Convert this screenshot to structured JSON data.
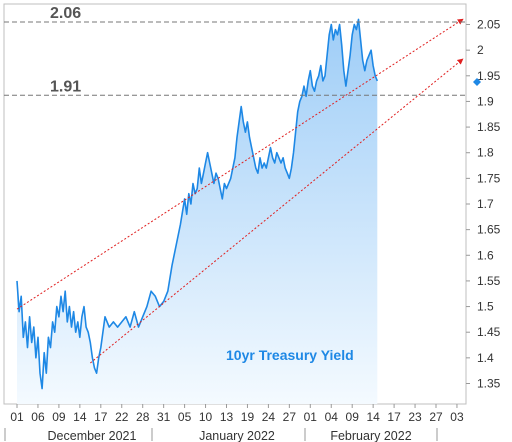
{
  "chart_data": {
    "type": "area",
    "title": "",
    "xlabel": "",
    "ylabel": "",
    "annotation": "10yr Treasury Yield",
    "ylim": [
      1.31,
      2.09
    ],
    "y_ticks": [
      "1.35",
      "1.4",
      "1.45",
      "1.5",
      "1.55",
      "1.6",
      "1.65",
      "1.7",
      "1.75",
      "1.8",
      "1.85",
      "1.9",
      "1.95",
      "2",
      "2.05"
    ],
    "x_ticks": [
      "01",
      "06",
      "09",
      "14",
      "17",
      "22",
      "28",
      "31",
      "05",
      "10",
      "13",
      "19",
      "24",
      "27",
      "01",
      "04",
      "09",
      "14",
      "17",
      "23",
      "27",
      "03"
    ],
    "months": [
      "December 2021",
      "January 2022",
      "February 2022"
    ],
    "reference_lines": [
      {
        "label": "2.06",
        "value": 2.055
      },
      {
        "label": "1.91",
        "value": 1.912
      }
    ],
    "channel_lines": [
      {
        "from": [
          0,
          1.495
        ],
        "to": [
          21.2,
          2.058
        ]
      },
      {
        "from": [
          3.5,
          1.39
        ],
        "to": [
          21.2,
          1.98
        ]
      }
    ],
    "last_value": 1.938,
    "series": [
      {
        "values": [
          [
            0.0,
            1.55
          ],
          [
            0.1,
            1.49
          ],
          [
            0.2,
            1.52
          ],
          [
            0.3,
            1.44
          ],
          [
            0.4,
            1.47
          ],
          [
            0.5,
            1.42
          ],
          [
            0.6,
            1.48
          ],
          [
            0.7,
            1.43
          ],
          [
            0.8,
            1.46
          ],
          [
            0.9,
            1.4
          ],
          [
            1.0,
            1.44
          ],
          [
            1.1,
            1.37
          ],
          [
            1.2,
            1.34
          ],
          [
            1.3,
            1.41
          ],
          [
            1.4,
            1.37
          ],
          [
            1.5,
            1.44
          ],
          [
            1.6,
            1.42
          ],
          [
            1.7,
            1.47
          ],
          [
            1.8,
            1.45
          ],
          [
            1.9,
            1.5
          ],
          [
            2.0,
            1.48
          ],
          [
            2.1,
            1.52
          ],
          [
            2.2,
            1.49
          ],
          [
            2.3,
            1.53
          ],
          [
            2.4,
            1.47
          ],
          [
            2.5,
            1.5
          ],
          [
            2.6,
            1.46
          ],
          [
            2.7,
            1.49
          ],
          [
            2.8,
            1.45
          ],
          [
            2.9,
            1.47
          ],
          [
            3.0,
            1.44
          ],
          [
            3.1,
            1.48
          ],
          [
            3.2,
            1.5
          ],
          [
            3.3,
            1.46
          ],
          [
            3.4,
            1.45
          ],
          [
            3.5,
            1.43
          ],
          [
            3.6,
            1.4
          ],
          [
            3.7,
            1.38
          ],
          [
            3.8,
            1.37
          ],
          [
            3.9,
            1.4
          ],
          [
            4.0,
            1.42
          ],
          [
            4.2,
            1.48
          ],
          [
            4.4,
            1.46
          ],
          [
            4.6,
            1.47
          ],
          [
            4.8,
            1.46
          ],
          [
            5.0,
            1.47
          ],
          [
            5.2,
            1.48
          ],
          [
            5.4,
            1.46
          ],
          [
            5.6,
            1.49
          ],
          [
            5.8,
            1.46
          ],
          [
            6.0,
            1.48
          ],
          [
            6.2,
            1.5
          ],
          [
            6.4,
            1.53
          ],
          [
            6.6,
            1.52
          ],
          [
            6.8,
            1.5
          ],
          [
            7.0,
            1.51
          ],
          [
            7.2,
            1.53
          ],
          [
            7.4,
            1.58
          ],
          [
            7.6,
            1.62
          ],
          [
            7.8,
            1.66
          ],
          [
            8.0,
            1.71
          ],
          [
            8.1,
            1.68
          ],
          [
            8.2,
            1.72
          ],
          [
            8.3,
            1.7
          ],
          [
            8.4,
            1.74
          ],
          [
            8.5,
            1.72
          ],
          [
            8.6,
            1.73
          ],
          [
            8.7,
            1.77
          ],
          [
            8.8,
            1.74
          ],
          [
            8.9,
            1.76
          ],
          [
            9.0,
            1.78
          ],
          [
            9.1,
            1.8
          ],
          [
            9.2,
            1.78
          ],
          [
            9.3,
            1.76
          ],
          [
            9.4,
            1.74
          ],
          [
            9.5,
            1.76
          ],
          [
            9.6,
            1.75
          ],
          [
            9.7,
            1.73
          ],
          [
            9.8,
            1.71
          ],
          [
            9.9,
            1.74
          ],
          [
            10.0,
            1.73
          ],
          [
            10.2,
            1.75
          ],
          [
            10.4,
            1.79
          ],
          [
            10.5,
            1.83
          ],
          [
            10.6,
            1.86
          ],
          [
            10.7,
            1.89
          ],
          [
            10.8,
            1.86
          ],
          [
            10.9,
            1.84
          ],
          [
            11.0,
            1.86
          ],
          [
            11.1,
            1.83
          ],
          [
            11.2,
            1.81
          ],
          [
            11.3,
            1.79
          ],
          [
            11.4,
            1.77
          ],
          [
            11.5,
            1.76
          ],
          [
            11.6,
            1.79
          ],
          [
            11.7,
            1.77
          ],
          [
            11.8,
            1.78
          ],
          [
            11.9,
            1.77
          ],
          [
            12.0,
            1.79
          ],
          [
            12.1,
            1.81
          ],
          [
            12.2,
            1.79
          ],
          [
            12.3,
            1.78
          ],
          [
            12.4,
            1.8
          ],
          [
            12.5,
            1.79
          ],
          [
            12.6,
            1.78
          ],
          [
            12.7,
            1.79
          ],
          [
            12.8,
            1.77
          ],
          [
            12.9,
            1.76
          ],
          [
            13.0,
            1.75
          ],
          [
            13.1,
            1.77
          ],
          [
            13.2,
            1.8
          ],
          [
            13.3,
            1.84
          ],
          [
            13.4,
            1.88
          ],
          [
            13.5,
            1.9
          ],
          [
            13.6,
            1.91
          ],
          [
            13.7,
            1.93
          ],
          [
            13.8,
            1.91
          ],
          [
            13.9,
            1.94
          ],
          [
            14.0,
            1.96
          ],
          [
            14.1,
            1.93
          ],
          [
            14.2,
            1.92
          ],
          [
            14.3,
            1.94
          ],
          [
            14.4,
            1.95
          ],
          [
            14.5,
            1.97
          ],
          [
            14.6,
            1.94
          ],
          [
            14.7,
            1.95
          ],
          [
            14.8,
            1.99
          ],
          [
            14.9,
            2.03
          ],
          [
            15.0,
            2.05
          ],
          [
            15.1,
            2.02
          ],
          [
            15.2,
            2.04
          ],
          [
            15.3,
            2.03
          ],
          [
            15.4,
            2.05
          ],
          [
            15.5,
            2.01
          ],
          [
            15.6,
            1.96
          ],
          [
            15.7,
            1.93
          ],
          [
            15.8,
            1.96
          ],
          [
            15.9,
            1.99
          ],
          [
            16.0,
            2.03
          ],
          [
            16.1,
            2.05
          ],
          [
            16.2,
            2.04
          ],
          [
            16.3,
            2.06
          ],
          [
            16.4,
            2.02
          ],
          [
            16.5,
            1.98
          ],
          [
            16.6,
            1.96
          ],
          [
            16.7,
            1.98
          ],
          [
            16.8,
            1.99
          ],
          [
            16.9,
            2.0
          ],
          [
            17.0,
            1.97
          ],
          [
            17.1,
            1.95
          ],
          [
            17.2,
            1.94
          ]
        ]
      }
    ]
  }
}
